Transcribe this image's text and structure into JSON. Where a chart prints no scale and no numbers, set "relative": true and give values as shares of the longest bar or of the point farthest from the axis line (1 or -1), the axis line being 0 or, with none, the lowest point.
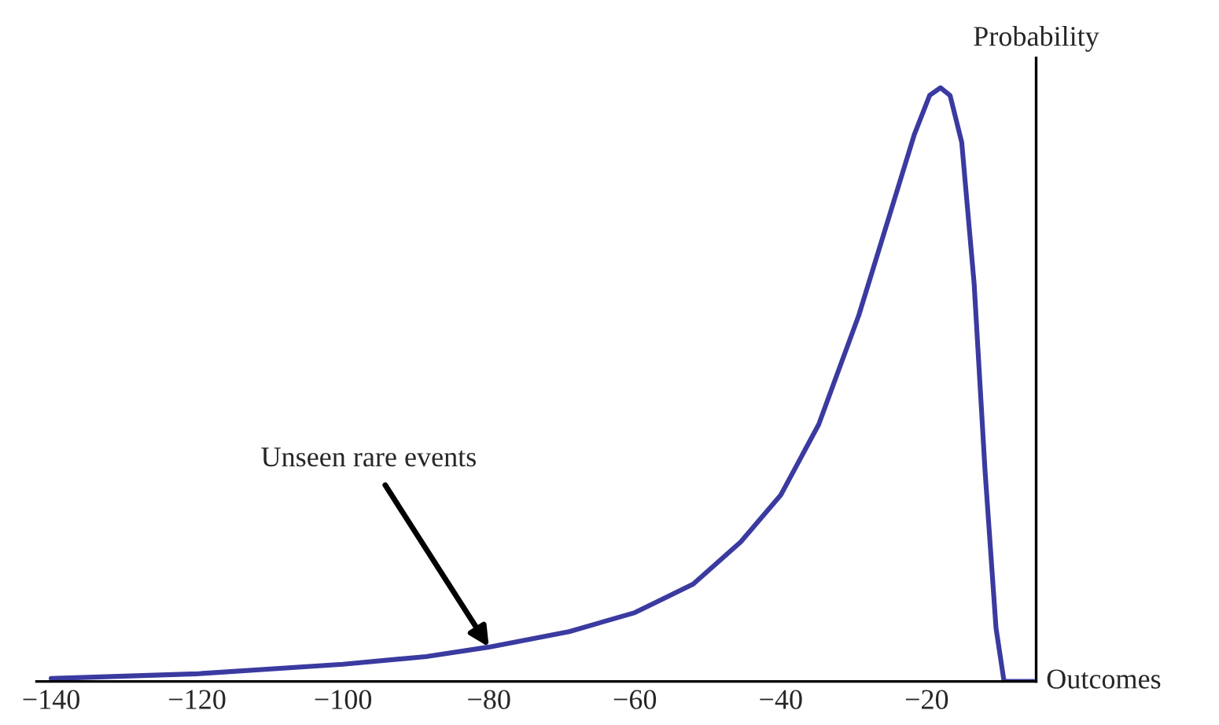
{
  "chart_data": {
    "type": "line",
    "xlabel": "Outcomes",
    "ylabel": "Probability",
    "relative": true,
    "x": [
      -140,
      -120,
      -100,
      -88.6,
      -80,
      -69,
      -60,
      -52,
      -45.5,
      -40,
      -34.8,
      -29.3,
      -25,
      -21.7,
      -19.6,
      -18.1,
      -16.8,
      -15.2,
      -13.5,
      -12,
      -10.5,
      -9.4,
      -7,
      -5.3
    ],
    "series": [
      {
        "color": "#3a3aa0",
        "values": [
          0.005,
          0.013,
          0.029,
          0.042,
          0.058,
          0.084,
          0.116,
          0.164,
          0.235,
          0.314,
          0.433,
          0.617,
          0.789,
          0.921,
          0.987,
          1.0,
          0.987,
          0.908,
          0.67,
          0.354,
          0.09,
          0,
          0,
          0
        ]
      }
    ],
    "xlim": [
      -142,
      -5
    ],
    "xticks": [
      -140,
      -120,
      -100,
      -80,
      -60,
      -40,
      -20
    ],
    "tick_labels": "x",
    "grid": false,
    "legend": false,
    "annotations": [
      {
        "text": "Unseen rare events",
        "x": -80,
        "y": 0.058
      }
    ]
  }
}
